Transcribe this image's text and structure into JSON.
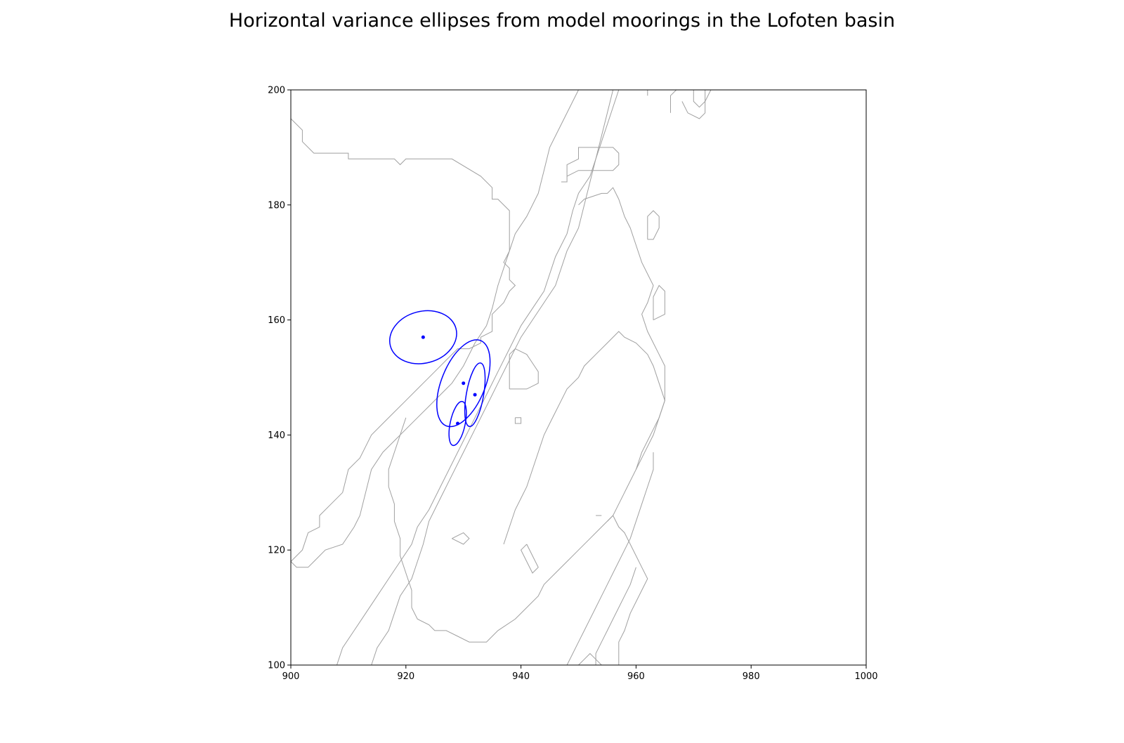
{
  "chart_data": {
    "type": "scatter",
    "title": "Horizontal variance ellipses from model moorings in the Lofoten basin",
    "xlabel": "",
    "ylabel": "",
    "xlim": [
      900,
      1000
    ],
    "ylim": [
      100,
      200
    ],
    "x_ticks": [
      900,
      920,
      940,
      960,
      980,
      1000
    ],
    "y_ticks": [
      100,
      120,
      140,
      160,
      180,
      200
    ],
    "grid": false,
    "ellipse_color": "#0000ff",
    "contour_color": "#a0a0a0",
    "moorings": [
      {
        "x": 923.0,
        "y": 157.0,
        "semi_major": 5.9,
        "semi_minor": 4.5,
        "angle_deg": 15
      },
      {
        "x": 930.0,
        "y": 149.0,
        "semi_major": 8.0,
        "semi_minor": 3.8,
        "angle_deg": 68
      },
      {
        "x": 932.0,
        "y": 147.0,
        "semi_major": 5.6,
        "semi_minor": 1.5,
        "angle_deg": 80
      },
      {
        "x": 929.0,
        "y": 142.0,
        "semi_major": 3.9,
        "semi_minor": 1.3,
        "angle_deg": 78
      }
    ],
    "contours": [
      [
        [
          900,
          195
        ],
        [
          902,
          193
        ],
        [
          902,
          191
        ],
        [
          904,
          189
        ],
        [
          910,
          189
        ],
        [
          910,
          188
        ],
        [
          918,
          188
        ],
        [
          919,
          187
        ],
        [
          920,
          188
        ],
        [
          928,
          188
        ],
        [
          933,
          185
        ],
        [
          935,
          183
        ],
        [
          935,
          181
        ],
        [
          936,
          181
        ],
        [
          938,
          179
        ],
        [
          938,
          172
        ],
        [
          937,
          170
        ],
        [
          938,
          169
        ],
        [
          938,
          167
        ],
        [
          939,
          166
        ],
        [
          938,
          165
        ],
        [
          937,
          163
        ],
        [
          935,
          161
        ],
        [
          935,
          158
        ],
        [
          933,
          157
        ],
        [
          933,
          156
        ],
        [
          931,
          155
        ],
        [
          929,
          155
        ],
        [
          927,
          153
        ],
        [
          925,
          151
        ],
        [
          923,
          149
        ],
        [
          922,
          148
        ],
        [
          920,
          146
        ],
        [
          918,
          144
        ],
        [
          916,
          142
        ],
        [
          914,
          140
        ],
        [
          913,
          138
        ],
        [
          912,
          136
        ],
        [
          910,
          134
        ],
        [
          909,
          130
        ],
        [
          907,
          128
        ],
        [
          905,
          126
        ],
        [
          905,
          124
        ],
        [
          903,
          123
        ],
        [
          902,
          120
        ],
        [
          900,
          118
        ]
      ],
      [
        [
          900,
          118
        ],
        [
          901,
          117
        ],
        [
          903,
          117
        ],
        [
          904,
          118
        ],
        [
          906,
          120
        ],
        [
          909,
          121
        ],
        [
          911,
          124
        ],
        [
          912,
          126
        ],
        [
          913,
          130
        ],
        [
          914,
          134
        ],
        [
          916,
          137
        ],
        [
          918,
          139
        ],
        [
          920,
          141
        ],
        [
          922,
          143
        ],
        [
          924,
          145
        ],
        [
          926,
          147
        ],
        [
          928,
          149
        ],
        [
          930,
          152
        ],
        [
          932,
          156
        ],
        [
          934,
          159
        ],
        [
          935,
          162
        ],
        [
          936,
          166
        ],
        [
          937,
          169
        ],
        [
          938,
          172
        ],
        [
          939,
          175
        ],
        [
          941,
          178
        ],
        [
          943,
          182
        ],
        [
          944,
          186
        ],
        [
          945,
          190
        ],
        [
          947,
          194
        ],
        [
          949,
          198
        ],
        [
          950,
          200
        ]
      ],
      [
        [
          908,
          100
        ],
        [
          909,
          103
        ],
        [
          911,
          106
        ],
        [
          913,
          109
        ],
        [
          915,
          112
        ],
        [
          917,
          115
        ],
        [
          919,
          118
        ],
        [
          921,
          121
        ],
        [
          922,
          124
        ],
        [
          924,
          127
        ],
        [
          926,
          131
        ],
        [
          928,
          135
        ],
        [
          930,
          139
        ],
        [
          932,
          143
        ],
        [
          934,
          147
        ],
        [
          936,
          151
        ],
        [
          938,
          155
        ],
        [
          940,
          159
        ],
        [
          942,
          162
        ],
        [
          944,
          165
        ],
        [
          945,
          168
        ],
        [
          946,
          171
        ],
        [
          948,
          175
        ],
        [
          949,
          179
        ],
        [
          950,
          182
        ],
        [
          952,
          185
        ],
        [
          953,
          188
        ],
        [
          954,
          191
        ],
        [
          955,
          194
        ],
        [
          956,
          197
        ],
        [
          957,
          200
        ]
      ],
      [
        [
          914,
          100
        ],
        [
          915,
          103
        ],
        [
          917,
          106
        ],
        [
          918,
          109
        ],
        [
          919,
          112
        ],
        [
          921,
          115
        ],
        [
          922,
          118
        ],
        [
          923,
          121
        ],
        [
          924,
          125
        ],
        [
          926,
          129
        ],
        [
          928,
          133
        ],
        [
          930,
          137
        ],
        [
          932,
          141
        ],
        [
          934,
          145
        ],
        [
          936,
          149
        ],
        [
          938,
          153
        ],
        [
          940,
          157
        ],
        [
          942,
          160
        ],
        [
          944,
          163
        ],
        [
          946,
          166
        ],
        [
          947,
          169
        ],
        [
          948,
          172
        ],
        [
          950,
          176
        ],
        [
          951,
          180
        ],
        [
          952,
          184
        ],
        [
          953,
          188
        ],
        [
          954,
          192
        ],
        [
          955,
          196
        ],
        [
          956,
          200
        ]
      ],
      [
        [
          921,
          110
        ],
        [
          922,
          108
        ],
        [
          924,
          107
        ],
        [
          925,
          106
        ],
        [
          927,
          106
        ],
        [
          929,
          105
        ],
        [
          931,
          104
        ],
        [
          934,
          104
        ],
        [
          936,
          106
        ],
        [
          939,
          108
        ],
        [
          941,
          110
        ],
        [
          943,
          112
        ],
        [
          944,
          114
        ],
        [
          946,
          116
        ],
        [
          948,
          118
        ],
        [
          950,
          120
        ],
        [
          952,
          122
        ],
        [
          954,
          124
        ],
        [
          956,
          126
        ],
        [
          957,
          128
        ],
        [
          958,
          130
        ],
        [
          959,
          132
        ],
        [
          960,
          134
        ],
        [
          961,
          136
        ],
        [
          962,
          138
        ],
        [
          963,
          140
        ],
        [
          964,
          143
        ],
        [
          965,
          146
        ],
        [
          964,
          149
        ],
        [
          963,
          152
        ],
        [
          962,
          154
        ],
        [
          960,
          156
        ],
        [
          958,
          157
        ],
        [
          957,
          158
        ],
        [
          955,
          156
        ],
        [
          953,
          154
        ],
        [
          951,
          152
        ],
        [
          950,
          150
        ],
        [
          948,
          148
        ],
        [
          947,
          146
        ],
        [
          946,
          144
        ],
        [
          945,
          142
        ],
        [
          944,
          140
        ],
        [
          943,
          137
        ],
        [
          942,
          134
        ],
        [
          941,
          131
        ],
        [
          940,
          129
        ],
        [
          939,
          127
        ],
        [
          938,
          124
        ],
        [
          937,
          121
        ]
      ],
      [
        [
          921,
          110
        ],
        [
          921,
          113
        ],
        [
          920,
          116
        ],
        [
          919,
          119
        ],
        [
          919,
          122
        ],
        [
          918,
          125
        ],
        [
          918,
          128
        ],
        [
          917,
          131
        ],
        [
          917,
          134
        ],
        [
          918,
          137
        ],
        [
          919,
          140
        ],
        [
          920,
          143
        ]
      ],
      [
        [
          928,
          122
        ],
        [
          930,
          121
        ],
        [
          931,
          122
        ],
        [
          930,
          123
        ],
        [
          928,
          122
        ]
      ],
      [
        [
          941,
          121
        ],
        [
          942,
          119
        ],
        [
          943,
          117
        ],
        [
          942,
          116
        ],
        [
          941,
          118
        ],
        [
          940,
          120
        ],
        [
          941,
          121
        ]
      ],
      [
        [
          939,
          143
        ],
        [
          940,
          143
        ],
        [
          940,
          142
        ],
        [
          939,
          142
        ],
        [
          939,
          143
        ]
      ],
      [
        [
          938,
          148
        ],
        [
          938,
          154
        ],
        [
          939,
          155
        ],
        [
          941,
          154
        ],
        [
          943,
          151
        ],
        [
          943,
          149
        ],
        [
          941,
          148
        ],
        [
          938,
          148
        ]
      ],
      [
        [
          947,
          184
        ],
        [
          948,
          184
        ],
        [
          948,
          187
        ],
        [
          950,
          188
        ],
        [
          950,
          190
        ],
        [
          956,
          190
        ],
        [
          957,
          189
        ],
        [
          957,
          187
        ],
        [
          956,
          186
        ],
        [
          950,
          186
        ],
        [
          948,
          185
        ]
      ],
      [
        [
          950,
          180
        ],
        [
          951,
          181
        ],
        [
          954,
          182
        ],
        [
          955,
          182
        ],
        [
          956,
          183
        ],
        [
          957,
          181
        ],
        [
          958,
          178
        ],
        [
          959,
          176
        ],
        [
          960,
          173
        ],
        [
          961,
          170
        ],
        [
          962,
          168
        ],
        [
          963,
          166
        ],
        [
          962,
          163
        ],
        [
          961,
          161
        ],
        [
          962,
          158
        ],
        [
          963,
          156
        ],
        [
          964,
          154
        ],
        [
          965,
          152
        ],
        [
          965,
          149
        ],
        [
          965,
          146
        ],
        [
          964,
          143
        ],
        [
          963,
          141
        ],
        [
          962,
          139
        ],
        [
          961,
          137
        ],
        [
          960,
          134
        ]
      ],
      [
        [
          955,
          125
        ],
        [
          956,
          126
        ],
        [
          957,
          124
        ],
        [
          958,
          123
        ],
        [
          959,
          121
        ],
        [
          960,
          119
        ],
        [
          961,
          117
        ],
        [
          962,
          115
        ],
        [
          961,
          113
        ],
        [
          960,
          111
        ],
        [
          959,
          109
        ],
        [
          958,
          106
        ],
        [
          957,
          104
        ],
        [
          957,
          100
        ]
      ],
      [
        [
          953,
          100
        ],
        [
          953,
          102
        ],
        [
          954,
          104
        ],
        [
          955,
          106
        ],
        [
          956,
          108
        ],
        [
          957,
          110
        ],
        [
          958,
          112
        ],
        [
          959,
          114
        ],
        [
          960,
          117
        ]
      ],
      [
        [
          948,
          100
        ],
        [
          949,
          102
        ],
        [
          950,
          104
        ],
        [
          951,
          106
        ],
        [
          952,
          108
        ],
        [
          953,
          110
        ],
        [
          954,
          112
        ],
        [
          955,
          114
        ],
        [
          956,
          116
        ],
        [
          957,
          118
        ],
        [
          958,
          120
        ],
        [
          959,
          122
        ],
        [
          960,
          125
        ],
        [
          961,
          128
        ],
        [
          962,
          131
        ],
        [
          963,
          134
        ],
        [
          963,
          137
        ]
      ],
      [
        [
          962,
          174
        ],
        [
          963,
          174
        ],
        [
          964,
          176
        ],
        [
          964,
          178
        ],
        [
          963,
          179
        ],
        [
          962,
          178
        ],
        [
          962,
          174
        ]
      ],
      [
        [
          963,
          160
        ],
        [
          965,
          161
        ],
        [
          965,
          165
        ],
        [
          964,
          166
        ],
        [
          963,
          164
        ],
        [
          963,
          160
        ]
      ],
      [
        [
          966,
          196
        ],
        [
          966,
          199
        ],
        [
          967,
          200
        ]
      ],
      [
        [
          968,
          198
        ],
        [
          969,
          196
        ],
        [
          971,
          195
        ],
        [
          972,
          196
        ],
        [
          972,
          198
        ],
        [
          973,
          200
        ]
      ],
      [
        [
          970,
          200
        ],
        [
          970,
          198
        ],
        [
          971,
          197
        ],
        [
          972,
          198
        ],
        [
          972,
          200
        ]
      ],
      [
        [
          962,
          200
        ],
        [
          962,
          199
        ]
      ],
      [
        [
          953,
          126
        ],
        [
          954,
          126
        ]
      ],
      [
        [
          950,
          100
        ],
        [
          951,
          101
        ],
        [
          952,
          102
        ],
        [
          953,
          101
        ],
        [
          954,
          100
        ]
      ]
    ]
  }
}
